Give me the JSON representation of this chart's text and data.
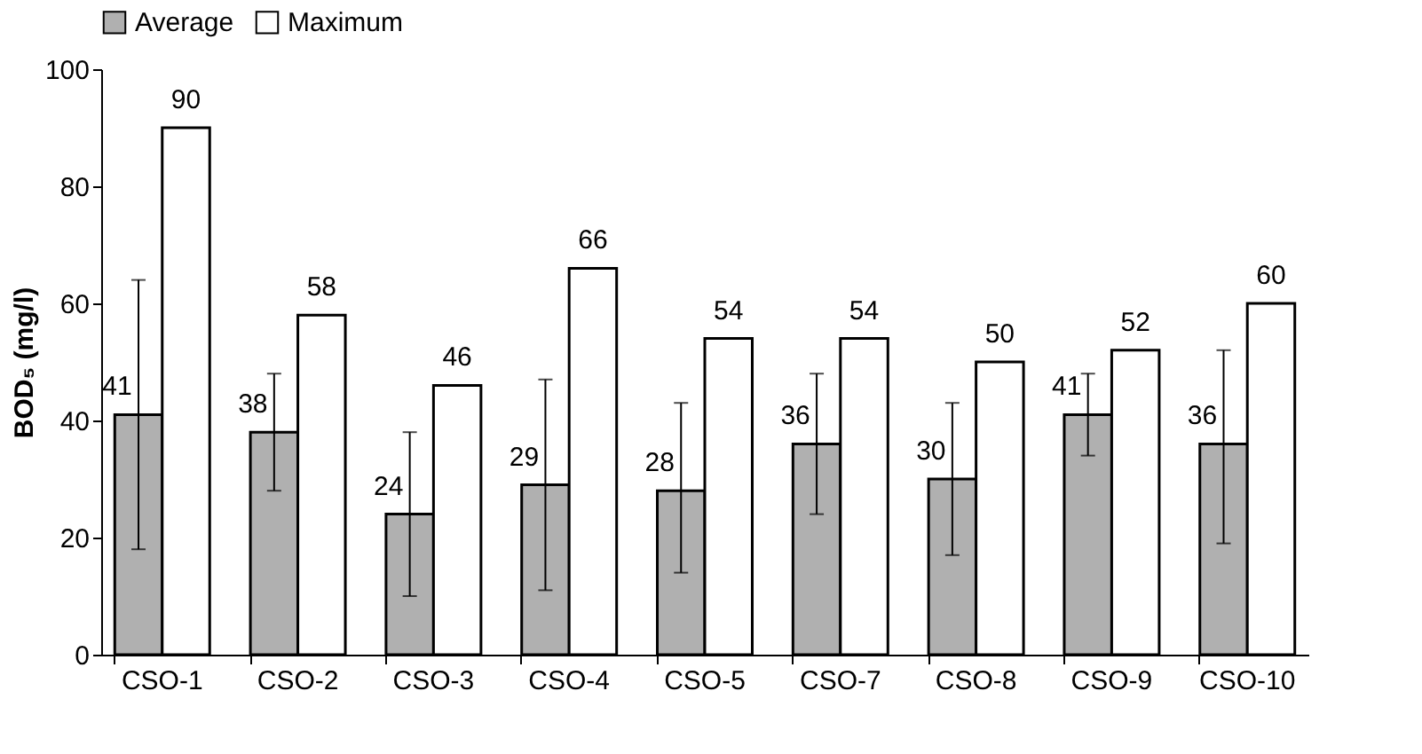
{
  "chart_data": {
    "type": "bar",
    "ylabel": "BOD₅ (mg/l)",
    "categories": [
      "CSO-1",
      "CSO-2",
      "CSO-3",
      "CSO-4",
      "CSO-5",
      "CSO-7",
      "CSO-8",
      "CSO-9",
      "CSO-10"
    ],
    "series": [
      {
        "name": "Average",
        "color": "#b0b0b0",
        "values": [
          41,
          38,
          24,
          29,
          28,
          36,
          30,
          41,
          36
        ],
        "errors": [
          [
            18,
            64
          ],
          [
            28,
            48
          ],
          [
            10,
            38
          ],
          [
            11,
            47
          ],
          [
            14,
            43
          ],
          [
            24,
            48
          ],
          [
            17,
            43
          ],
          [
            34,
            48
          ],
          [
            19,
            52
          ]
        ]
      },
      {
        "name": "Maximum",
        "color": "#ffffff",
        "values": [
          90,
          58,
          46,
          66,
          54,
          54,
          50,
          52,
          60
        ]
      }
    ],
    "ylim": [
      0,
      100
    ],
    "yticks": [
      0,
      20,
      40,
      60,
      80,
      100
    ],
    "grid": false,
    "legend": "top",
    "data_labels": true
  }
}
